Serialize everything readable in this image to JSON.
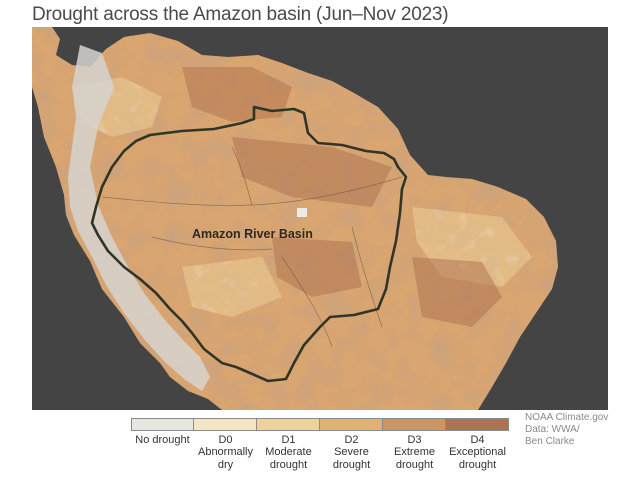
{
  "title": "Drought across the Amazon basin (Jun–Nov 2023)",
  "map": {
    "region_label": "Amazon River Basin",
    "background_color": "#444444"
  },
  "legend": [
    {
      "code": "",
      "description": "No drought",
      "color": "#e8e6e0"
    },
    {
      "code": "D0",
      "description": "Abnormally dry",
      "color": "#f2e6c4"
    },
    {
      "code": "D1",
      "description": "Moderate drought",
      "color": "#ecd39a"
    },
    {
      "code": "D2",
      "description": "Severe drought",
      "color": "#e2b170"
    },
    {
      "code": "D3",
      "description": "Extreme drought",
      "color": "#cd9660"
    },
    {
      "code": "D4",
      "description": "Exceptional drought",
      "color": "#ad7353"
    }
  ],
  "credit": [
    "NOAA Climate.gov",
    "Data: WWA/",
    "Ben Clarke"
  ]
}
